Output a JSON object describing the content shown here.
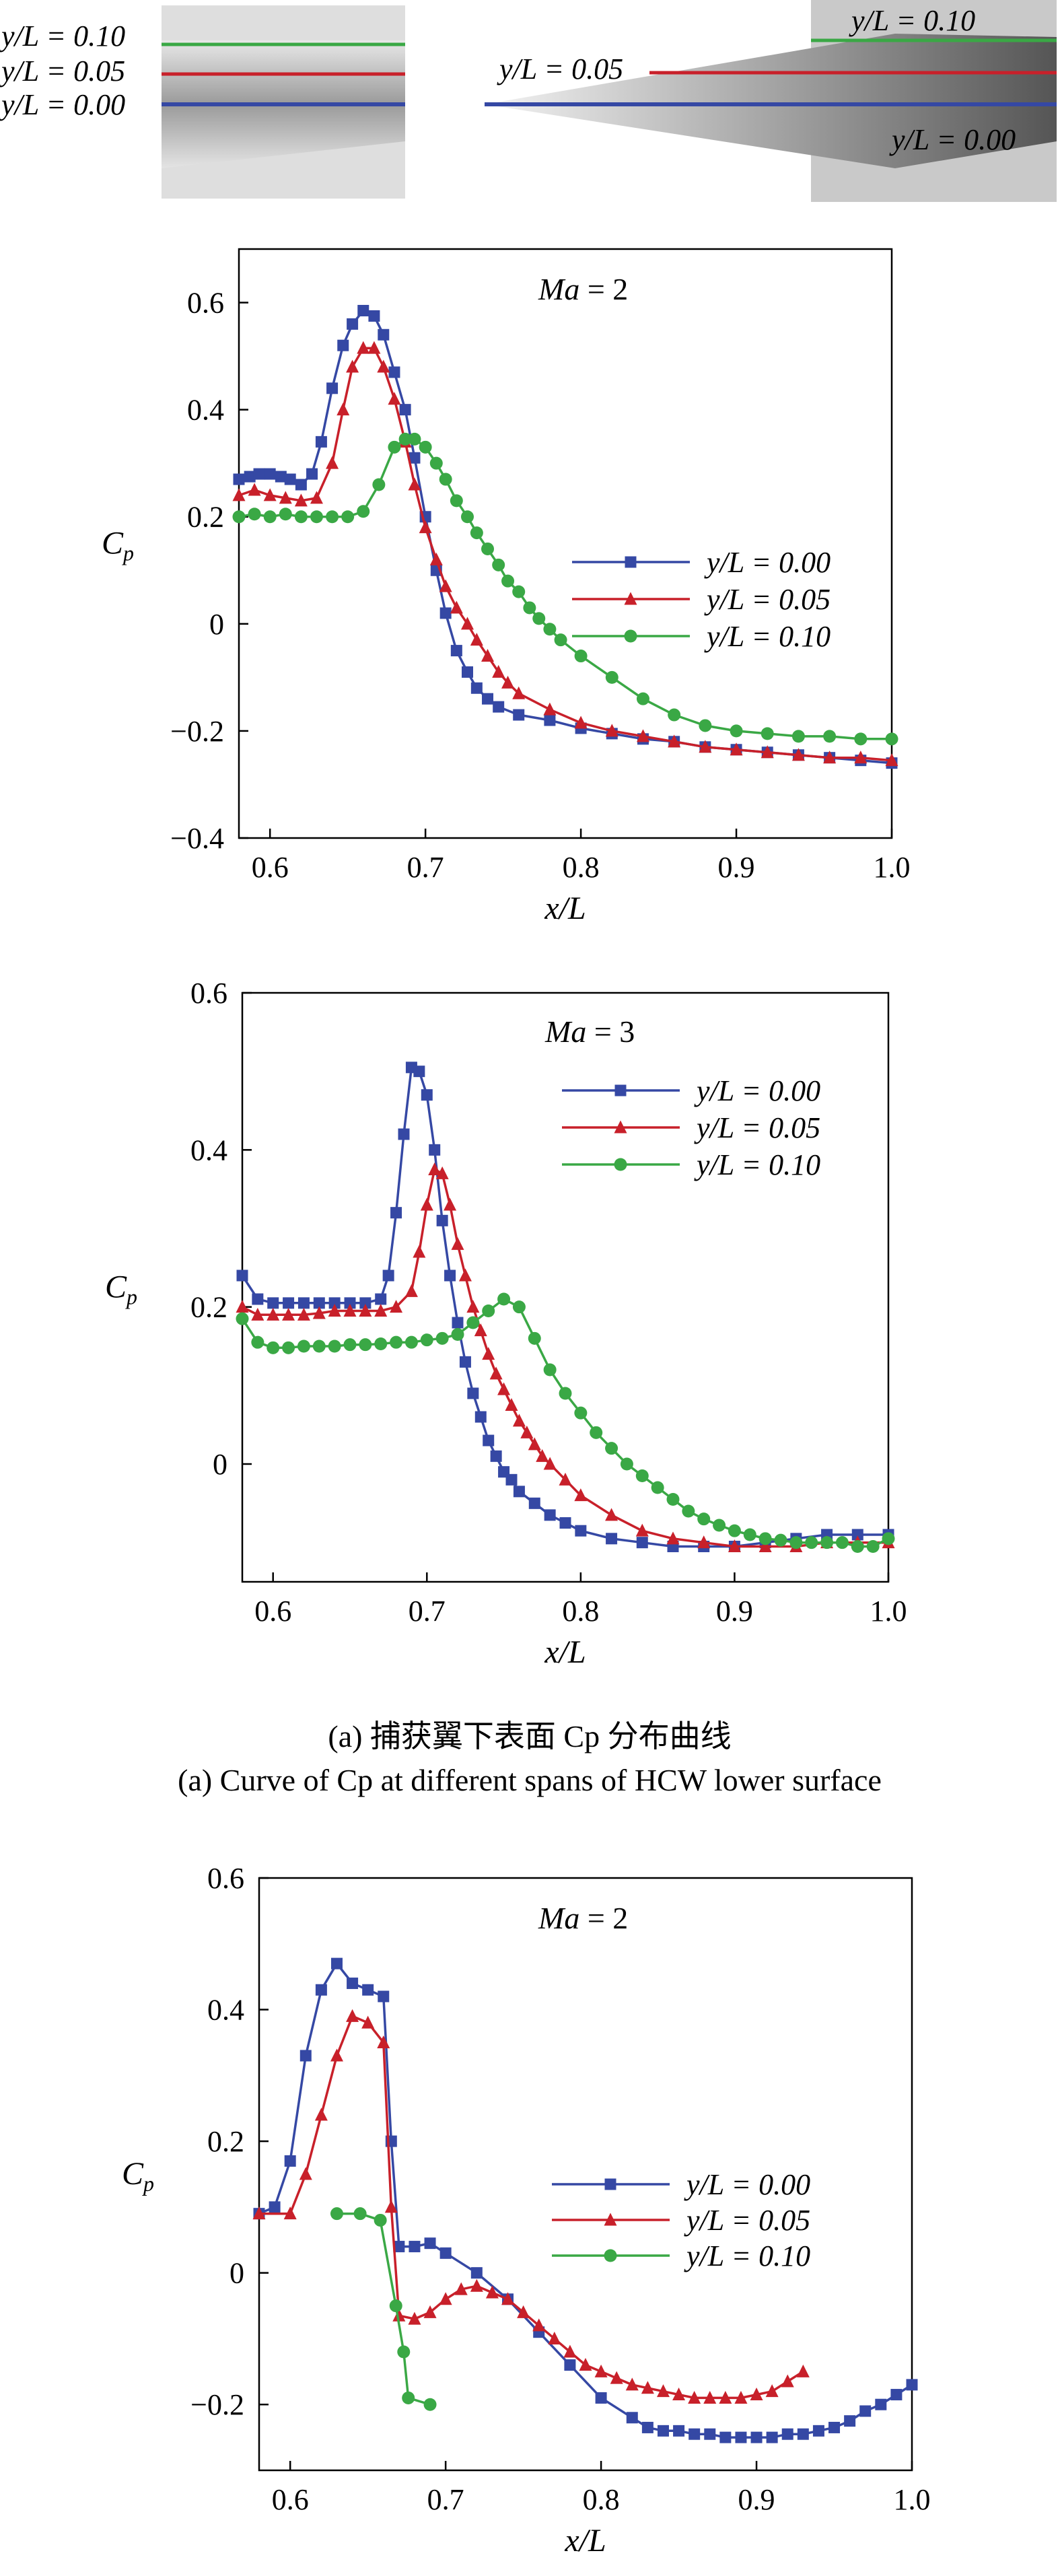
{
  "colors": {
    "blue": "#3548a4",
    "red": "#c8202a",
    "green": "#3aa845",
    "axis": "#000000",
    "gray_light": "#dcdcdc",
    "gray_dark": "#8a8a8a"
  },
  "schematics": {
    "left": {
      "labels": [
        "y/L = 0.10",
        "y/L = 0.05",
        "y/L = 0.00"
      ]
    },
    "right": {
      "labels": [
        "y/L = 0.10",
        "y/L = 0.05",
        "y/L = 0.00"
      ]
    }
  },
  "captions": {
    "a_zh": "(a) 捕获翼下表面 Cp 分布曲线",
    "a_en": "(a) Curve of Cp at different spans of HCW lower surface"
  },
  "chart_data": [
    {
      "type": "line",
      "annotation": "Ma = 2",
      "xlabel": "x/L",
      "ylabel": "Cp",
      "xlim": [
        0.58,
        1.0
      ],
      "ylim": [
        -0.4,
        0.7
      ],
      "xticks": [
        "0.6",
        "0.7",
        "0.8",
        "0.9",
        "1.0"
      ],
      "yticks": [
        "−0.4",
        "−0.2",
        "0",
        "0.2",
        "0.4",
        "0.6"
      ],
      "legend_position": "right-middle",
      "series": [
        {
          "name": "y/L = 0.00",
          "marker": "square",
          "color": "#3548a4",
          "x": [
            0.58,
            0.587,
            0.593,
            0.6,
            0.607,
            0.613,
            0.62,
            0.627,
            0.633,
            0.64,
            0.647,
            0.653,
            0.66,
            0.667,
            0.673,
            0.68,
            0.687,
            0.693,
            0.7,
            0.707,
            0.713,
            0.72,
            0.727,
            0.733,
            0.74,
            0.747,
            0.76,
            0.78,
            0.8,
            0.82,
            0.84,
            0.86,
            0.88,
            0.9,
            0.92,
            0.94,
            0.96,
            0.98,
            1.0
          ],
          "values": [
            0.27,
            0.275,
            0.28,
            0.28,
            0.275,
            0.27,
            0.26,
            0.28,
            0.34,
            0.44,
            0.52,
            0.56,
            0.585,
            0.575,
            0.54,
            0.47,
            0.4,
            0.31,
            0.2,
            0.1,
            0.02,
            -0.05,
            -0.09,
            -0.12,
            -0.14,
            -0.155,
            -0.17,
            -0.18,
            -0.195,
            -0.205,
            -0.215,
            -0.22,
            -0.23,
            -0.235,
            -0.24,
            -0.245,
            -0.25,
            -0.255,
            -0.26
          ]
        },
        {
          "name": "y/L = 0.05",
          "marker": "triangle",
          "color": "#c8202a",
          "x": [
            0.58,
            0.59,
            0.6,
            0.61,
            0.62,
            0.63,
            0.64,
            0.647,
            0.653,
            0.66,
            0.667,
            0.673,
            0.68,
            0.687,
            0.693,
            0.7,
            0.707,
            0.713,
            0.72,
            0.727,
            0.733,
            0.74,
            0.747,
            0.753,
            0.76,
            0.78,
            0.8,
            0.82,
            0.84,
            0.86,
            0.88,
            0.9,
            0.92,
            0.94,
            0.96,
            0.98,
            1.0
          ],
          "values": [
            0.24,
            0.25,
            0.24,
            0.235,
            0.23,
            0.235,
            0.3,
            0.4,
            0.48,
            0.515,
            0.515,
            0.48,
            0.42,
            0.34,
            0.26,
            0.18,
            0.12,
            0.07,
            0.03,
            0.0,
            -0.03,
            -0.06,
            -0.09,
            -0.11,
            -0.13,
            -0.16,
            -0.185,
            -0.2,
            -0.21,
            -0.22,
            -0.23,
            -0.235,
            -0.24,
            -0.245,
            -0.25,
            -0.25,
            -0.255
          ]
        },
        {
          "name": "y/L = 0.10",
          "marker": "circle",
          "color": "#3aa845",
          "x": [
            0.58,
            0.59,
            0.6,
            0.61,
            0.62,
            0.63,
            0.64,
            0.65,
            0.66,
            0.67,
            0.68,
            0.687,
            0.693,
            0.7,
            0.707,
            0.713,
            0.72,
            0.727,
            0.733,
            0.74,
            0.747,
            0.753,
            0.76,
            0.767,
            0.773,
            0.78,
            0.787,
            0.8,
            0.82,
            0.84,
            0.86,
            0.88,
            0.9,
            0.92,
            0.94,
            0.96,
            0.98,
            1.0
          ],
          "values": [
            0.2,
            0.205,
            0.2,
            0.205,
            0.2,
            0.2,
            0.2,
            0.2,
            0.21,
            0.26,
            0.33,
            0.345,
            0.345,
            0.33,
            0.3,
            0.27,
            0.23,
            0.2,
            0.17,
            0.14,
            0.11,
            0.08,
            0.06,
            0.03,
            0.01,
            -0.01,
            -0.03,
            -0.06,
            -0.1,
            -0.14,
            -0.17,
            -0.19,
            -0.2,
            -0.205,
            -0.21,
            -0.21,
            -0.215,
            -0.215
          ]
        }
      ]
    },
    {
      "type": "line",
      "annotation": "Ma = 3",
      "xlabel": "x/L",
      "ylabel": "Cp",
      "xlim": [
        0.58,
        1.0
      ],
      "ylim": [
        -0.15,
        0.6
      ],
      "xticks": [
        "0.6",
        "0.7",
        "0.8",
        "0.9",
        "1.0"
      ],
      "yticks": [
        "0",
        "0.2",
        "0.4",
        "0.6"
      ],
      "legend_position": "top-right",
      "series": [
        {
          "name": "y/L = 0.00",
          "marker": "square",
          "color": "#3548a4",
          "x": [
            0.58,
            0.59,
            0.6,
            0.61,
            0.62,
            0.63,
            0.64,
            0.65,
            0.66,
            0.67,
            0.675,
            0.68,
            0.685,
            0.69,
            0.695,
            0.7,
            0.705,
            0.71,
            0.715,
            0.72,
            0.725,
            0.73,
            0.735,
            0.74,
            0.745,
            0.75,
            0.755,
            0.76,
            0.77,
            0.78,
            0.79,
            0.8,
            0.82,
            0.84,
            0.86,
            0.88,
            0.9,
            0.92,
            0.94,
            0.96,
            0.98,
            1.0
          ],
          "values": [
            0.24,
            0.21,
            0.205,
            0.205,
            0.205,
            0.205,
            0.205,
            0.205,
            0.205,
            0.21,
            0.24,
            0.32,
            0.42,
            0.505,
            0.5,
            0.47,
            0.4,
            0.31,
            0.24,
            0.18,
            0.13,
            0.09,
            0.06,
            0.03,
            0.01,
            -0.01,
            -0.02,
            -0.035,
            -0.05,
            -0.065,
            -0.075,
            -0.085,
            -0.095,
            -0.1,
            -0.105,
            -0.105,
            -0.105,
            -0.1,
            -0.095,
            -0.09,
            -0.09,
            -0.09
          ]
        },
        {
          "name": "y/L = 0.05",
          "marker": "triangle",
          "color": "#c8202a",
          "x": [
            0.58,
            0.59,
            0.6,
            0.61,
            0.62,
            0.63,
            0.64,
            0.65,
            0.66,
            0.67,
            0.68,
            0.69,
            0.695,
            0.7,
            0.705,
            0.71,
            0.715,
            0.72,
            0.725,
            0.73,
            0.735,
            0.74,
            0.745,
            0.75,
            0.755,
            0.76,
            0.765,
            0.77,
            0.775,
            0.78,
            0.79,
            0.8,
            0.82,
            0.84,
            0.86,
            0.88,
            0.9,
            0.92,
            0.94,
            0.96,
            0.98,
            1.0
          ],
          "values": [
            0.2,
            0.19,
            0.19,
            0.19,
            0.19,
            0.192,
            0.195,
            0.195,
            0.195,
            0.195,
            0.2,
            0.22,
            0.27,
            0.33,
            0.375,
            0.37,
            0.33,
            0.28,
            0.24,
            0.2,
            0.17,
            0.14,
            0.115,
            0.095,
            0.075,
            0.055,
            0.04,
            0.025,
            0.01,
            0.0,
            -0.02,
            -0.04,
            -0.065,
            -0.085,
            -0.095,
            -0.1,
            -0.105,
            -0.105,
            -0.105,
            -0.1,
            -0.1,
            -0.1
          ]
        },
        {
          "name": "y/L = 0.10",
          "marker": "circle",
          "color": "#3aa845",
          "x": [
            0.58,
            0.59,
            0.6,
            0.61,
            0.62,
            0.63,
            0.64,
            0.65,
            0.66,
            0.67,
            0.68,
            0.69,
            0.7,
            0.71,
            0.72,
            0.73,
            0.74,
            0.75,
            0.76,
            0.77,
            0.78,
            0.79,
            0.8,
            0.81,
            0.82,
            0.83,
            0.84,
            0.85,
            0.86,
            0.87,
            0.88,
            0.89,
            0.9,
            0.91,
            0.92,
            0.93,
            0.94,
            0.95,
            0.96,
            0.97,
            0.98,
            0.99,
            1.0
          ],
          "values": [
            0.185,
            0.155,
            0.148,
            0.148,
            0.15,
            0.15,
            0.15,
            0.152,
            0.152,
            0.153,
            0.155,
            0.155,
            0.158,
            0.16,
            0.165,
            0.18,
            0.195,
            0.21,
            0.2,
            0.16,
            0.12,
            0.09,
            0.065,
            0.04,
            0.02,
            0.0,
            -0.015,
            -0.03,
            -0.045,
            -0.06,
            -0.07,
            -0.078,
            -0.085,
            -0.09,
            -0.095,
            -0.097,
            -0.1,
            -0.1,
            -0.1,
            -0.1,
            -0.105,
            -0.105,
            -0.095
          ]
        }
      ]
    },
    {
      "type": "line",
      "annotation": "Ma = 2",
      "xlabel": "x/L",
      "ylabel": "Cp",
      "xlim": [
        0.58,
        1.0
      ],
      "ylim": [
        -0.3,
        0.6
      ],
      "xticks": [
        "0.6",
        "0.7",
        "0.8",
        "0.9",
        "1.0"
      ],
      "yticks": [
        "−0.2",
        "0",
        "0.2",
        "0.4",
        "0.6"
      ],
      "legend_position": "right-middle",
      "series": [
        {
          "name": "y/L = 0.00",
          "marker": "square",
          "color": "#3548a4",
          "x": [
            0.58,
            0.59,
            0.6,
            0.61,
            0.62,
            0.63,
            0.64,
            0.65,
            0.66,
            0.665,
            0.67,
            0.68,
            0.69,
            0.7,
            0.72,
            0.74,
            0.76,
            0.78,
            0.8,
            0.82,
            0.83,
            0.84,
            0.85,
            0.86,
            0.87,
            0.88,
            0.89,
            0.9,
            0.91,
            0.92,
            0.93,
            0.94,
            0.95,
            0.96,
            0.97,
            0.98,
            0.99,
            1.0
          ],
          "values": [
            0.09,
            0.1,
            0.17,
            0.33,
            0.43,
            0.47,
            0.44,
            0.43,
            0.42,
            0.2,
            0.04,
            0.04,
            0.045,
            0.03,
            0.0,
            -0.04,
            -0.09,
            -0.14,
            -0.19,
            -0.22,
            -0.235,
            -0.24,
            -0.24,
            -0.245,
            -0.245,
            -0.25,
            -0.25,
            -0.25,
            -0.25,
            -0.245,
            -0.245,
            -0.24,
            -0.235,
            -0.225,
            -0.21,
            -0.2,
            -0.185,
            -0.17
          ]
        },
        {
          "name": "y/L = 0.05",
          "marker": "triangle",
          "color": "#c8202a",
          "x": [
            0.58,
            0.6,
            0.61,
            0.62,
            0.63,
            0.64,
            0.65,
            0.66,
            0.665,
            0.67,
            0.68,
            0.69,
            0.7,
            0.71,
            0.72,
            0.73,
            0.74,
            0.75,
            0.76,
            0.77,
            0.78,
            0.79,
            0.8,
            0.81,
            0.82,
            0.83,
            0.84,
            0.85,
            0.86,
            0.87,
            0.88,
            0.89,
            0.9,
            0.91,
            0.92,
            0.93
          ],
          "values": [
            0.09,
            0.09,
            0.15,
            0.24,
            0.33,
            0.39,
            0.38,
            0.35,
            0.1,
            -0.065,
            -0.07,
            -0.06,
            -0.04,
            -0.025,
            -0.02,
            -0.03,
            -0.04,
            -0.06,
            -0.08,
            -0.1,
            -0.12,
            -0.14,
            -0.15,
            -0.16,
            -0.17,
            -0.175,
            -0.18,
            -0.185,
            -0.19,
            -0.19,
            -0.19,
            -0.19,
            -0.185,
            -0.18,
            -0.165,
            -0.15
          ]
        },
        {
          "name": "y/L = 0.10",
          "marker": "circle",
          "color": "#3aa845",
          "x": [
            0.63,
            0.645,
            0.658,
            0.668,
            0.673,
            0.676,
            0.69
          ],
          "values": [
            0.09,
            0.09,
            0.08,
            -0.05,
            -0.12,
            -0.19,
            -0.2
          ]
        }
      ]
    }
  ]
}
